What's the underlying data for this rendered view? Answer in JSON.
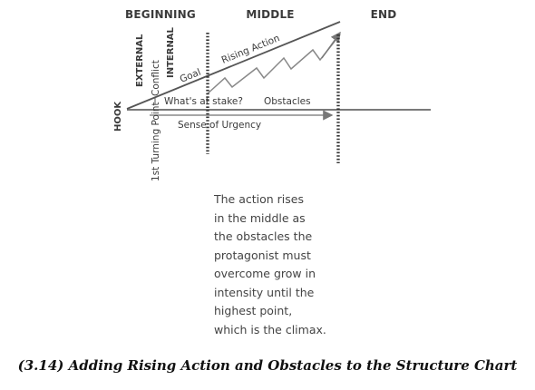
{
  "sections": {
    "beginning": "BEGINNING",
    "middle": "MIDDLE",
    "end": "END"
  },
  "labels": {
    "hook": "HOOK",
    "external": "EXTERNAL",
    "turning_point": "1st Turning Point",
    "conflict": "Conflict",
    "internal": "INTERNAL",
    "goal": "Goal",
    "rising_action": "Rising Action",
    "whats_at_stake": "What's at stake?",
    "obstacles": "Obstacles",
    "sense_of_urgency": "Sense of Urgency"
  },
  "description": [
    "The action rises",
    "in the middle as",
    "the obstacles the",
    "protagonist must",
    "overcome grow in",
    "intensity until the",
    "highest point,",
    "which is the climax."
  ],
  "caption": "(3.14) Adding Rising Action and Obstacles to the Structure Chart",
  "colors": {
    "line": "#555555",
    "accent": "#8a8a8a",
    "text": "#3a3a3a"
  }
}
